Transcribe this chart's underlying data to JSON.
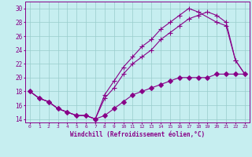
{
  "xlabel": "Windchill (Refroidissement éolien,°C)",
  "ylabel": "",
  "xlim": [
    -0.5,
    23.5
  ],
  "ylim": [
    13.5,
    31.0
  ],
  "xticks": [
    0,
    1,
    2,
    3,
    4,
    5,
    6,
    7,
    8,
    9,
    10,
    11,
    12,
    13,
    14,
    15,
    16,
    17,
    18,
    19,
    20,
    21,
    22,
    23
  ],
  "yticks": [
    14,
    16,
    18,
    20,
    22,
    24,
    26,
    28,
    30
  ],
  "background_color": "#c6eef0",
  "line_color": "#880088",
  "grid_color": "#99cccc",
  "series": [
    {
      "x": [
        0,
        1,
        2,
        3,
        4,
        5,
        6,
        7,
        8,
        9,
        10,
        11,
        12,
        13,
        14,
        15,
        16,
        17,
        18,
        20,
        21,
        22,
        23
      ],
      "y": [
        18,
        17,
        16.5,
        15.5,
        15.0,
        14.5,
        14.5,
        14.0,
        17.5,
        19.5,
        21.5,
        23.0,
        24.5,
        25.5,
        27.0,
        28.0,
        29.0,
        30.0,
        29.5,
        28.0,
        27.5,
        22.5,
        20.5
      ],
      "marker": "+"
    },
    {
      "x": [
        0,
        1,
        2,
        3,
        4,
        5,
        6,
        7,
        8,
        9,
        10,
        11,
        12,
        13,
        14,
        15,
        16,
        17,
        18,
        19,
        20,
        21,
        22,
        23
      ],
      "y": [
        18,
        17,
        16.5,
        15.5,
        15.0,
        14.5,
        14.5,
        14.0,
        17.0,
        18.5,
        20.5,
        22.0,
        23.0,
        24.0,
        25.5,
        26.5,
        27.5,
        28.5,
        29.0,
        29.5,
        29.0,
        28.0,
        22.5,
        20.5
      ],
      "marker": "+"
    },
    {
      "x": [
        0,
        1,
        2,
        3,
        4,
        5,
        6,
        7,
        8,
        9,
        10,
        11,
        12,
        13,
        14,
        15,
        16,
        17,
        18,
        19,
        20,
        21,
        22,
        23
      ],
      "y": [
        18,
        17,
        16.5,
        15.5,
        15.0,
        14.5,
        14.5,
        14.0,
        14.5,
        15.5,
        16.5,
        17.5,
        18.0,
        18.5,
        19.0,
        19.5,
        20.0,
        20.0,
        20.0,
        20.0,
        20.5,
        20.5,
        20.5,
        20.5
      ],
      "marker": "D"
    }
  ]
}
